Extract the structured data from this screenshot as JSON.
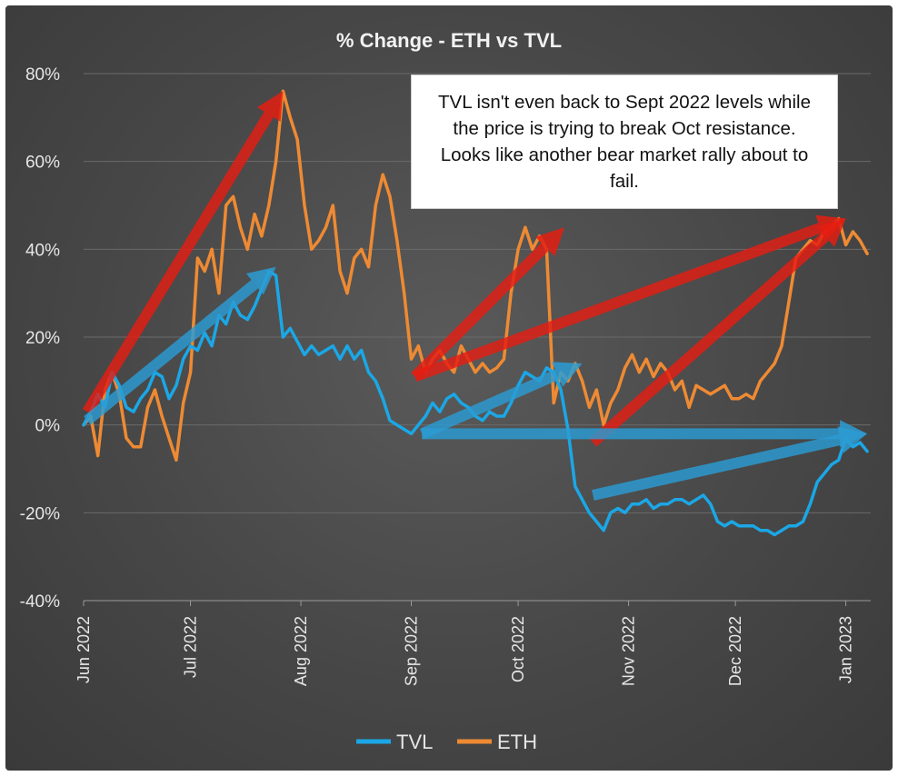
{
  "colors": {
    "tvl": "#1ba7e6",
    "eth": "#ee8a33",
    "arrow_red": "#e41d12",
    "arrow_blue": "#2b9cd4",
    "background": "#474747"
  },
  "annotation": {
    "text": "TVL isn't even back to Sept 2022 levels while the price is trying to break Oct resistance. Looks like another bear market rally about to fail."
  },
  "chart_data": {
    "type": "line",
    "title": "% Change - ETH vs TVL",
    "xlabel": "",
    "ylabel": "",
    "ylim": [
      -40,
      80
    ],
    "xlim_days": [
      0,
      221
    ],
    "yticks": [
      {
        "value": 80,
        "label": "80%"
      },
      {
        "value": 60,
        "label": "60%"
      },
      {
        "value": 40,
        "label": "40%"
      },
      {
        "value": 20,
        "label": "20%"
      },
      {
        "value": 0,
        "label": "0%"
      },
      {
        "value": -20,
        "label": "-20%"
      },
      {
        "value": -40,
        "label": "-40%"
      }
    ],
    "xticks": [
      {
        "day": 0,
        "label": "Jun 2022"
      },
      {
        "day": 30,
        "label": "Jul 2022"
      },
      {
        "day": 61,
        "label": "Aug 2022"
      },
      {
        "day": 92,
        "label": "Sep 2022"
      },
      {
        "day": 122,
        "label": "Oct 2022"
      },
      {
        "day": 153,
        "label": "Nov 2022"
      },
      {
        "day": 183,
        "label": "Dec 2022"
      },
      {
        "day": 214,
        "label": "Jan 2023"
      }
    ],
    "legend": [
      "TVL",
      "ETH"
    ],
    "legend_position": "bottom",
    "grid": true,
    "series": [
      {
        "name": "TVL",
        "x": [
          0,
          2,
          4,
          6,
          8,
          10,
          12,
          14,
          16,
          18,
          20,
          22,
          24,
          26,
          28,
          30,
          32,
          34,
          36,
          38,
          40,
          42,
          44,
          46,
          48,
          50,
          52,
          54,
          56,
          58,
          60,
          62,
          64,
          66,
          68,
          70,
          72,
          74,
          76,
          78,
          80,
          82,
          84,
          86,
          88,
          90,
          92,
          94,
          96,
          98,
          100,
          102,
          104,
          106,
          108,
          110,
          112,
          114,
          116,
          118,
          120,
          122,
          124,
          126,
          128,
          130,
          132,
          134,
          136,
          138,
          140,
          142,
          144,
          146,
          148,
          150,
          152,
          154,
          156,
          158,
          160,
          162,
          164,
          166,
          168,
          170,
          172,
          174,
          176,
          178,
          180,
          182,
          184,
          186,
          188,
          190,
          192,
          194,
          196,
          198,
          200,
          202,
          204,
          206,
          208,
          210,
          212,
          214,
          216,
          218,
          220
        ],
        "values": [
          0,
          3,
          7,
          4,
          12,
          9,
          4,
          3,
          6,
          8,
          12,
          11,
          6,
          9,
          15,
          18,
          17,
          21,
          18,
          25,
          23,
          28,
          25,
          24,
          27,
          31,
          35,
          34,
          20,
          22,
          19,
          16,
          18,
          16,
          17,
          18,
          15,
          18,
          15,
          17,
          12,
          10,
          6,
          1,
          0,
          -1,
          -2,
          0,
          2,
          5,
          3,
          6,
          7,
          5,
          4,
          2,
          1,
          3,
          2,
          2,
          5,
          9,
          12,
          11,
          10,
          13,
          12,
          8,
          -1,
          -14,
          -17,
          -20,
          -22,
          -24,
          -20,
          -19,
          -20,
          -18,
          -18,
          -17,
          -19,
          -18,
          -18,
          -17,
          -17,
          -18,
          -17,
          -16,
          -18,
          -22,
          -23,
          -22,
          -23,
          -23,
          -23,
          -24,
          -24,
          -25,
          -24,
          -23,
          -23,
          -22,
          -18,
          -13,
          -11,
          -9,
          -8,
          -3,
          -5,
          -4,
          -6
        ]
      },
      {
        "name": "ETH",
        "x": [
          0,
          2,
          4,
          6,
          8,
          10,
          12,
          14,
          16,
          18,
          20,
          22,
          24,
          26,
          28,
          30,
          32,
          34,
          36,
          38,
          40,
          42,
          44,
          46,
          48,
          50,
          52,
          54,
          56,
          58,
          60,
          62,
          64,
          66,
          68,
          70,
          72,
          74,
          76,
          78,
          80,
          82,
          84,
          86,
          88,
          90,
          92,
          94,
          96,
          98,
          100,
          102,
          104,
          106,
          108,
          110,
          112,
          114,
          116,
          118,
          120,
          122,
          124,
          126,
          128,
          130,
          132,
          134,
          136,
          138,
          140,
          142,
          144,
          146,
          148,
          150,
          152,
          154,
          156,
          158,
          160,
          162,
          164,
          166,
          168,
          170,
          172,
          174,
          176,
          178,
          180,
          182,
          184,
          186,
          188,
          190,
          192,
          194,
          196,
          198,
          200,
          202,
          204,
          206,
          208,
          210,
          212,
          214,
          216,
          218,
          220
        ],
        "values": [
          0,
          2,
          -7,
          8,
          12,
          7,
          -3,
          -5,
          -5,
          4,
          8,
          2,
          -3,
          -8,
          5,
          12,
          38,
          35,
          40,
          30,
          50,
          52,
          45,
          40,
          48,
          43,
          50,
          60,
          76,
          70,
          65,
          50,
          40,
          42,
          45,
          50,
          35,
          30,
          38,
          40,
          36,
          50,
          57,
          52,
          42,
          30,
          15,
          18,
          12,
          15,
          17,
          14,
          12,
          18,
          15,
          12,
          14,
          12,
          13,
          15,
          30,
          40,
          45,
          40,
          43,
          40,
          5,
          12,
          10,
          14,
          10,
          4,
          8,
          0,
          5,
          8,
          13,
          16,
          12,
          15,
          11,
          14,
          12,
          8,
          10,
          4,
          9,
          8,
          7,
          8,
          9,
          6,
          6,
          7,
          6,
          10,
          12,
          14,
          18,
          28,
          38,
          40,
          42,
          41,
          44,
          45,
          47,
          41,
          44,
          42,
          39
        ]
      }
    ],
    "annotations_arrows": [
      {
        "color": "red",
        "from": {
          "day": 1,
          "pct": 3
        },
        "to": {
          "day": 56,
          "pct": 76
        }
      },
      {
        "color": "blue",
        "from": {
          "day": 1,
          "pct": 1
        },
        "to": {
          "day": 54,
          "pct": 36
        }
      },
      {
        "color": "red",
        "from": {
          "day": 93,
          "pct": 11
        },
        "to": {
          "day": 135,
          "pct": 45
        }
      },
      {
        "color": "red",
        "from": {
          "day": 93,
          "pct": 11
        },
        "to": {
          "day": 214,
          "pct": 47
        }
      },
      {
        "color": "blue",
        "from": {
          "day": 95,
          "pct": -2
        },
        "to": {
          "day": 140,
          "pct": 14
        }
      },
      {
        "color": "red",
        "from": {
          "day": 143,
          "pct": -4
        },
        "to": {
          "day": 214,
          "pct": 47
        }
      },
      {
        "color": "blue",
        "from": {
          "day": 95,
          "pct": -2
        },
        "to": {
          "day": 220,
          "pct": -2
        }
      },
      {
        "color": "blue",
        "from": {
          "day": 143,
          "pct": -16
        },
        "to": {
          "day": 220,
          "pct": -2
        }
      }
    ]
  }
}
